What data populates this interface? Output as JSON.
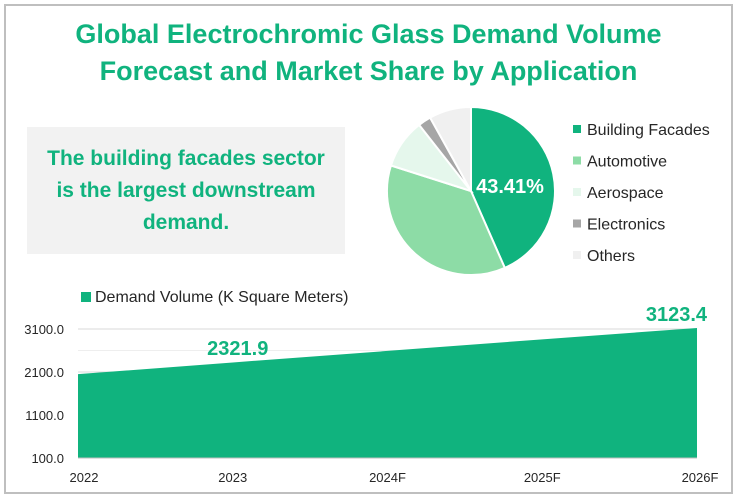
{
  "title": "Global Electrochromic Glass Demand Volume Forecast and Market Share by Application",
  "title_lines": [
    "Global Electrochromic Glass Demand Volume",
    "Forecast and Market Share by Application"
  ],
  "note": "The building facades sector is the largest downstream demand.",
  "colors": {
    "accent": "#10b37e",
    "automotive": "#8ddca6",
    "aerospace": "#e5f7ec",
    "electronics": "#a6a6a6",
    "others": "#f0f0f0"
  },
  "chart_data": [
    {
      "type": "pie",
      "title": "Market Share by Application",
      "categories": [
        "Building Facades",
        "Automotive",
        "Aerospace",
        "Electronics",
        "Others"
      ],
      "values": [
        43.41,
        36.5,
        9.5,
        2.5,
        8.09
      ],
      "data_labels": [
        "43.41%"
      ],
      "legend": "right"
    },
    {
      "type": "area",
      "series": [
        {
          "name": "Demand Volume (K Square Meters)",
          "values": [
            2050.0,
            2321.9,
            2590.0,
            2860.0,
            3123.4
          ]
        }
      ],
      "categories": [
        "2022",
        "2023",
        "2024F",
        "2025F",
        "2026F"
      ],
      "data_labels": {
        "2023": "2321.9",
        "2026F": "3123.4"
      },
      "yticks": [
        "100.0",
        "1100.0",
        "2100.0",
        "3100.0"
      ],
      "ylim": [
        100,
        3100
      ],
      "grid": true,
      "legend": "top-left"
    }
  ]
}
